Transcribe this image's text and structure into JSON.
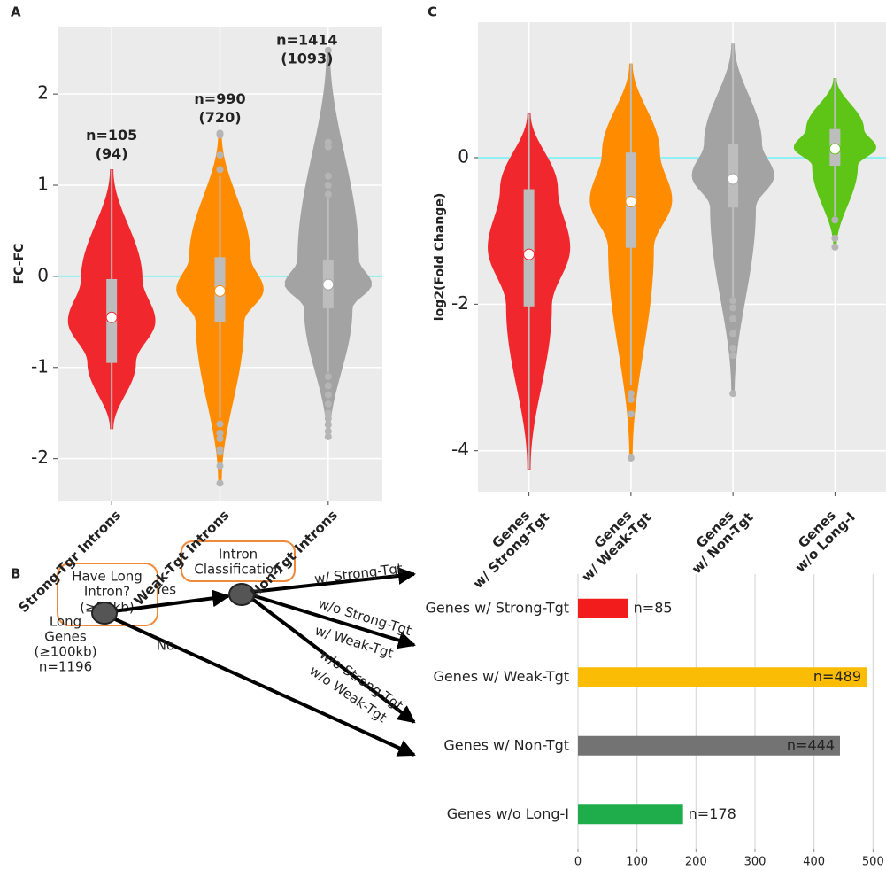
{
  "panel_labels": [
    "A",
    "B",
    "C"
  ],
  "diagram": {
    "question_box": [
      "Have Long",
      "Intron?",
      "(≥30kb)"
    ],
    "classification_box": [
      "Intron",
      "Classification"
    ],
    "root": [
      "Long",
      "Genes",
      "(≥100kb)",
      "n=1196"
    ],
    "yes": "Yes",
    "no": "No",
    "edge_strong": "w/ Strong-Tgt",
    "edge_weak": [
      "w/o Strong-Tgt",
      "w/  Weak-Tgt"
    ],
    "edge_non": [
      "w/o Strong-Tgt",
      "w/o Weak-Tgt"
    ]
  },
  "chart_data": [
    {
      "type": "violin",
      "ylabel": "FC-FC",
      "categories": [
        "Strong-Tgr Introns",
        "Weak-Tgt Introns",
        "Non-Tgt Introns"
      ],
      "ylim": [
        -2.46,
        2.74
      ],
      "yticks": [
        -2,
        -1,
        0,
        1,
        2
      ],
      "grid": true,
      "reference_line": 0,
      "reference_color": "#8ef0f0",
      "series": [
        {
          "color": "#f0282d",
          "min": -1.67,
          "max": 1.17,
          "q1": -0.95,
          "q3": -0.03,
          "whisker_low": -1.67,
          "whisker_high": 1.17,
          "mean": -0.45,
          "outliers": []
        },
        {
          "color": "#ff8c00",
          "min": -2.27,
          "max": 1.57,
          "q1": -0.5,
          "q3": 0.21,
          "whisker_low": -1.55,
          "whisker_high": 1.1,
          "mean": -0.16,
          "outliers": [
            1.57,
            1.55,
            1.33,
            1.17,
            -1.62,
            -1.72,
            -1.78,
            -1.9,
            -1.93,
            -2.08,
            -2.27
          ]
        },
        {
          "color": "#a3a3a3",
          "min": -1.76,
          "max": 2.5,
          "q1": -0.35,
          "q3": 0.18,
          "whisker_low": -1.05,
          "whisker_high": 0.85,
          "mean": -0.09,
          "outliers": [
            2.48,
            1.47,
            1.42,
            1.1,
            1.0,
            0.9,
            -1.1,
            -1.2,
            -1.3,
            -1.4,
            -1.5,
            -1.56,
            -1.63,
            -1.7,
            -1.76
          ]
        }
      ],
      "annotations": [
        {
          "lines": [
            "n=105",
            "(94)"
          ],
          "color": "#f0282d"
        },
        {
          "lines": [
            "n=990",
            "(720)"
          ],
          "color": "#ff8c00"
        },
        {
          "lines": [
            "n=1414",
            "(1093)"
          ],
          "color": "#4d3b3b"
        }
      ]
    },
    {
      "type": "violin",
      "ylabel": "log2(Fold Change)",
      "categories": [
        [
          "Genes",
          "w/ Strong-Tgt"
        ],
        [
          "Genes",
          "w/ Weak-Tgt"
        ],
        [
          "Genes",
          "w/ Non-Tgt"
        ],
        [
          "Genes",
          "w/o Long-I"
        ]
      ],
      "ylim": [
        -4.56,
        1.85
      ],
      "yticks": [
        -4,
        -2,
        0
      ],
      "grid": true,
      "reference_line": 0,
      "reference_color": "#8ef0f0",
      "series": [
        {
          "color": "#f0282d",
          "min": -4.25,
          "max": 0.6,
          "q1": -2.03,
          "q3": -0.43,
          "whisker_low": -4.25,
          "whisker_high": 0.6,
          "mean": -1.32,
          "outliers": []
        },
        {
          "color": "#ff8c00",
          "min": -4.1,
          "max": 1.28,
          "q1": -1.23,
          "q3": 0.07,
          "whisker_low": -3.1,
          "whisker_high": 1.28,
          "mean": -0.6,
          "outliers": [
            -3.22,
            -3.3,
            -3.5,
            -4.1
          ]
        },
        {
          "color": "#a3a3a3",
          "min": -3.22,
          "max": 1.55,
          "q1": -0.68,
          "q3": 0.19,
          "whisker_low": -1.9,
          "whisker_high": 1.55,
          "mean": -0.29,
          "outliers": [
            -1.95,
            -2.05,
            -2.2,
            -2.4,
            -2.6,
            -2.7,
            -3.22
          ]
        },
        {
          "color": "#5ec416",
          "min": -1.22,
          "max": 1.08,
          "q1": -0.11,
          "q3": 0.39,
          "whisker_low": -0.8,
          "whisker_high": 1.08,
          "mean": 0.12,
          "outliers": [
            -0.85,
            -1.1,
            -1.22
          ]
        }
      ],
      "annotations": []
    },
    {
      "type": "bar",
      "orientation": "horizontal",
      "categories": [
        "Genes w/ Strong-Tgt",
        "Genes w/ Weak-Tgt",
        "Genes w/ Non-Tgt",
        "Genes w/o Long-I"
      ],
      "values": [
        85,
        489,
        444,
        178
      ],
      "value_labels": [
        "n=85",
        "n=489",
        "n=444",
        "n=178"
      ],
      "colors": [
        "#f21c1c",
        "#fbbc05",
        "#737373",
        "#1fad4c"
      ],
      "xlim": [
        0,
        522
      ],
      "xticks": [
        0,
        100,
        200,
        300,
        400,
        500
      ],
      "grid": true
    }
  ]
}
